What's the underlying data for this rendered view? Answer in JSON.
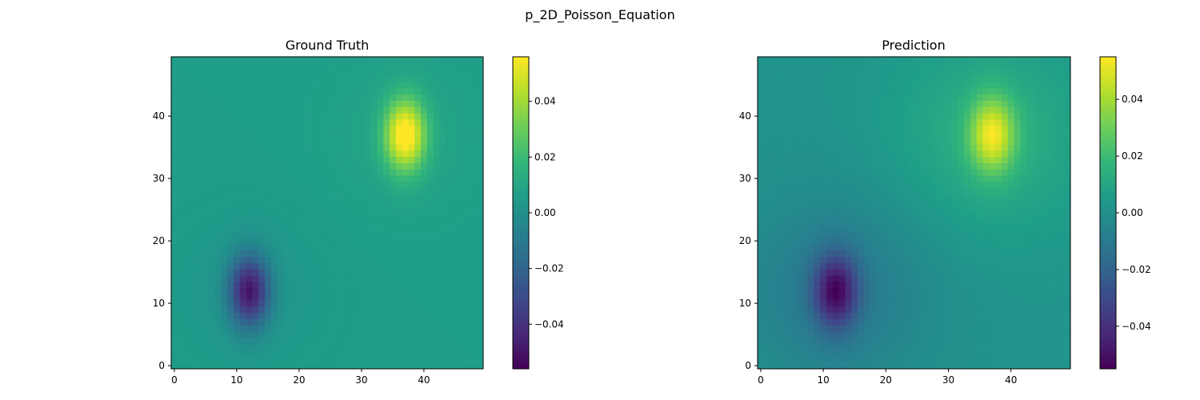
{
  "suptitle": "p_2D_Poisson_Equation",
  "colors": {
    "viridis_stops": [
      "#440154",
      "#482878",
      "#3e4989",
      "#31688e",
      "#26828e",
      "#1f9e89",
      "#35b779",
      "#6ece58",
      "#b5de2b",
      "#fde725"
    ]
  },
  "chart_data": [
    {
      "type": "heatmap",
      "title": "Ground Truth",
      "grid_size": [
        50,
        50
      ],
      "origin": "lower",
      "colormap": "viridis",
      "xlim": [
        -0.5,
        49.5
      ],
      "ylim": [
        -0.5,
        49.5
      ],
      "xticks": [
        0,
        10,
        20,
        30,
        40
      ],
      "yticks": [
        0,
        10,
        20,
        30,
        40
      ],
      "xtick_labels": [
        "0",
        "10",
        "20",
        "30",
        "40"
      ],
      "ytick_labels": [
        "0",
        "10",
        "20",
        "30",
        "40"
      ],
      "vmin": -0.056,
      "vmax": 0.056,
      "colorbar_ticks": [
        -0.04,
        -0.02,
        0.0,
        0.02,
        0.04
      ],
      "colorbar_tick_labels": [
        "−0.04",
        "−0.02",
        "0.00",
        "0.02",
        "0.04"
      ],
      "background_value": 0.006,
      "features": [
        {
          "x": 37,
          "y": 37,
          "peak": 0.056,
          "sigma_x": 2.3,
          "sigma_y": 4.0,
          "tail_amp": 0.003,
          "tail_sigma": 9
        },
        {
          "x": 12,
          "y": 12,
          "peak": -0.056,
          "sigma_x": 2.3,
          "sigma_y": 4.0,
          "tail_amp": 0.003,
          "tail_sigma": 9
        }
      ]
    },
    {
      "type": "heatmap",
      "title": "Prediction",
      "grid_size": [
        50,
        50
      ],
      "origin": "lower",
      "colormap": "viridis",
      "xlim": [
        -0.5,
        49.5
      ],
      "ylim": [
        -0.5,
        49.5
      ],
      "xticks": [
        0,
        10,
        20,
        30,
        40
      ],
      "yticks": [
        0,
        10,
        20,
        30,
        40
      ],
      "xtick_labels": [
        "0",
        "10",
        "20",
        "30",
        "40"
      ],
      "ytick_labels": [
        "0",
        "10",
        "20",
        "30",
        "40"
      ],
      "vmin": -0.055,
      "vmax": 0.055,
      "colorbar_ticks": [
        -0.04,
        -0.02,
        0.0,
        0.02,
        0.04
      ],
      "colorbar_tick_labels": [
        "−0.04",
        "−0.02",
        "0.00",
        "0.02",
        "0.04"
      ],
      "background_value": 0.002,
      "features": [
        {
          "x": 37,
          "y": 37,
          "peak": 0.053,
          "sigma_x": 2.5,
          "sigma_y": 4.2,
          "tail_amp": 0.012,
          "tail_sigma": 11
        },
        {
          "x": 12,
          "y": 12,
          "peak": -0.057,
          "sigma_x": 2.5,
          "sigma_y": 4.2,
          "tail_amp": 0.012,
          "tail_sigma": 11
        }
      ]
    }
  ]
}
